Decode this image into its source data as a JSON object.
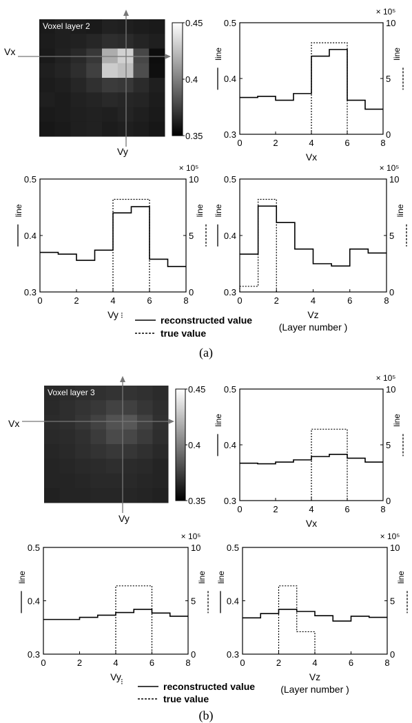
{
  "figure": {
    "caption_a": "(a)",
    "caption_b": "(b)"
  },
  "legend": {
    "solid_label": "reconstructed value",
    "dashed_label": "true value",
    "small_mark": "⁝"
  },
  "image_panels": [
    {
      "id": "a",
      "title": "Voxel layer 2",
      "xlabel": "Vx",
      "ylabel": "Vy",
      "colorbar_ticks": [
        "0.45",
        "0.4",
        "0.35"
      ],
      "colorbar_range": [
        0.35,
        0.45
      ],
      "grid": [
        [
          0.36,
          0.362,
          0.361,
          0.36,
          0.363,
          0.362,
          0.361,
          0.36
        ],
        [
          0.361,
          0.362,
          0.363,
          0.365,
          0.368,
          0.367,
          0.364,
          0.362
        ],
        [
          0.36,
          0.363,
          0.366,
          0.372,
          0.418,
          0.432,
          0.378,
          0.355
        ],
        [
          0.362,
          0.364,
          0.368,
          0.375,
          0.43,
          0.425,
          0.38,
          0.356
        ],
        [
          0.361,
          0.362,
          0.365,
          0.369,
          0.373,
          0.372,
          0.367,
          0.362
        ],
        [
          0.362,
          0.361,
          0.363,
          0.364,
          0.366,
          0.365,
          0.364,
          0.361
        ],
        [
          0.36,
          0.361,
          0.362,
          0.363,
          0.362,
          0.364,
          0.362,
          0.36
        ],
        [
          0.359,
          0.36,
          0.362,
          0.363,
          0.361,
          0.362,
          0.361,
          0.359
        ]
      ]
    },
    {
      "id": "b",
      "title": "Voxel layer 3",
      "xlabel": "Vx",
      "ylabel": "Vy",
      "colorbar_ticks": [
        "0.45",
        "0.4",
        "0.35"
      ],
      "colorbar_range": [
        0.35,
        0.45
      ],
      "grid": [
        [
          0.366,
          0.367,
          0.368,
          0.369,
          0.37,
          0.37,
          0.369,
          0.367
        ],
        [
          0.366,
          0.368,
          0.37,
          0.372,
          0.376,
          0.375,
          0.371,
          0.368
        ],
        [
          0.367,
          0.368,
          0.371,
          0.376,
          0.382,
          0.384,
          0.376,
          0.369
        ],
        [
          0.366,
          0.367,
          0.369,
          0.373,
          0.379,
          0.378,
          0.373,
          0.368
        ],
        [
          0.365,
          0.366,
          0.368,
          0.37,
          0.372,
          0.371,
          0.369,
          0.366
        ],
        [
          0.364,
          0.365,
          0.366,
          0.367,
          0.368,
          0.367,
          0.366,
          0.364
        ],
        [
          0.364,
          0.364,
          0.365,
          0.366,
          0.366,
          0.366,
          0.365,
          0.364
        ],
        [
          0.363,
          0.364,
          0.364,
          0.365,
          0.365,
          0.365,
          0.364,
          0.363
        ]
      ]
    }
  ],
  "chart_data": [
    {
      "id": "a1",
      "type": "line",
      "xlabel": "Vx",
      "xlabel2": "",
      "ylabel_left": "line",
      "ylabel_right": "line",
      "exponent": "× 10⁵",
      "xlim": [
        0,
        8
      ],
      "xticks": [
        0,
        2,
        4,
        6,
        8
      ],
      "ylim": [
        0.3,
        0.5
      ],
      "yticks": [
        0.3,
        0.4,
        0.5
      ],
      "y2lim": [
        0,
        10
      ],
      "y2ticks": [
        0,
        5,
        10
      ],
      "series": [
        {
          "style": "solid",
          "axis": "left",
          "x": [
            0,
            1,
            2,
            3,
            4,
            5,
            6,
            7,
            8
          ],
          "y": [
            0.366,
            0.368,
            0.361,
            0.373,
            0.44,
            0.452,
            0.361,
            0.345,
            0.345
          ]
        },
        {
          "style": "dotted",
          "axis": "right",
          "x": [
            4,
            4,
            6,
            6
          ],
          "y": [
            0,
            8.2,
            8.2,
            0
          ]
        }
      ]
    },
    {
      "id": "a2",
      "type": "line",
      "xlabel": "Vy",
      "xlabel2": "",
      "ylabel_left": "line",
      "ylabel_right": "line",
      "exponent": "× 10⁵",
      "xlim": [
        0,
        8
      ],
      "xticks": [
        0,
        2,
        4,
        6,
        8
      ],
      "ylim": [
        0.3,
        0.5
      ],
      "yticks": [
        0.3,
        0.4,
        0.5
      ],
      "y2lim": [
        0,
        10
      ],
      "y2ticks": [
        0,
        5,
        10
      ],
      "series": [
        {
          "style": "solid",
          "axis": "left",
          "x": [
            0,
            1,
            2,
            3,
            4,
            5,
            6,
            7,
            8
          ],
          "y": [
            0.37,
            0.367,
            0.356,
            0.374,
            0.44,
            0.451,
            0.358,
            0.345,
            0.345
          ]
        },
        {
          "style": "dotted",
          "axis": "right",
          "x": [
            4,
            4,
            6,
            6
          ],
          "y": [
            0,
            8.2,
            8.2,
            0
          ]
        }
      ]
    },
    {
      "id": "a3",
      "type": "line",
      "xlabel": "Vz",
      "xlabel2": "(Layer number )",
      "ylabel_left": "line",
      "ylabel_right": "line",
      "exponent": "× 10⁵",
      "xlim": [
        0,
        8
      ],
      "xticks": [
        0,
        2,
        4,
        6,
        8
      ],
      "ylim": [
        0.3,
        0.5
      ],
      "yticks": [
        0.3,
        0.4,
        0.5
      ],
      "y2lim": [
        0,
        10
      ],
      "y2ticks": [
        0,
        5,
        10
      ],
      "series": [
        {
          "style": "solid",
          "axis": "left",
          "x": [
            0,
            1,
            2,
            3,
            4,
            5,
            6,
            7,
            8
          ],
          "y": [
            0.367,
            0.452,
            0.423,
            0.376,
            0.35,
            0.346,
            0.376,
            0.369,
            0.369
          ]
        },
        {
          "style": "dotted",
          "axis": "right",
          "x": [
            0,
            0,
            1,
            1,
            2,
            2
          ],
          "y": [
            0,
            0.5,
            0.5,
            8.2,
            8.2,
            0
          ]
        }
      ]
    },
    {
      "id": "b1",
      "type": "line",
      "xlabel": "Vx",
      "xlabel2": "",
      "ylabel_left": "line",
      "ylabel_right": "line",
      "exponent": "× 10⁵",
      "xlim": [
        0,
        8
      ],
      "xticks": [
        0,
        2,
        4,
        6,
        8
      ],
      "ylim": [
        0.3,
        0.5
      ],
      "yticks": [
        0.3,
        0.4,
        0.5
      ],
      "y2lim": [
        0,
        10
      ],
      "y2ticks": [
        0,
        5,
        10
      ],
      "series": [
        {
          "style": "solid",
          "axis": "left",
          "x": [
            0,
            1,
            2,
            3,
            4,
            5,
            6,
            7,
            8
          ],
          "y": [
            0.367,
            0.366,
            0.369,
            0.373,
            0.379,
            0.383,
            0.376,
            0.369,
            0.369
          ]
        },
        {
          "style": "dotted",
          "axis": "right",
          "x": [
            4,
            4,
            6,
            6
          ],
          "y": [
            0,
            6.4,
            6.4,
            0
          ]
        }
      ]
    },
    {
      "id": "b2",
      "type": "line",
      "xlabel": "Vy",
      "xlabel2": "",
      "ylabel_left": "line",
      "ylabel_right": "line",
      "exponent": "× 10⁵",
      "xlim": [
        0,
        8
      ],
      "xticks": [
        0,
        2,
        4,
        6,
        8
      ],
      "ylim": [
        0.3,
        0.5
      ],
      "yticks": [
        0.3,
        0.4,
        0.5
      ],
      "y2lim": [
        0,
        10
      ],
      "y2ticks": [
        0,
        5,
        10
      ],
      "series": [
        {
          "style": "solid",
          "axis": "left",
          "x": [
            0,
            1,
            2,
            3,
            4,
            5,
            6,
            7,
            8
          ],
          "y": [
            0.365,
            0.365,
            0.369,
            0.373,
            0.378,
            0.384,
            0.377,
            0.371,
            0.371
          ]
        },
        {
          "style": "dotted",
          "axis": "right",
          "x": [
            4,
            4,
            6,
            6
          ],
          "y": [
            0,
            6.4,
            6.4,
            0
          ]
        }
      ]
    },
    {
      "id": "b3",
      "type": "line",
      "xlabel": "Vz",
      "xlabel2": "(Layer number )",
      "ylabel_left": "line",
      "ylabel_right": "line",
      "exponent": "× 10⁵",
      "xlim": [
        0,
        8
      ],
      "xticks": [
        0,
        2,
        4,
        6,
        8
      ],
      "ylim": [
        0.3,
        0.5
      ],
      "yticks": [
        0.3,
        0.4,
        0.5
      ],
      "y2lim": [
        0,
        10
      ],
      "y2ticks": [
        0,
        5,
        10
      ],
      "series": [
        {
          "style": "solid",
          "axis": "left",
          "x": [
            0,
            1,
            2,
            3,
            4,
            5,
            6,
            7,
            8
          ],
          "y": [
            0.368,
            0.376,
            0.384,
            0.38,
            0.372,
            0.362,
            0.371,
            0.369,
            0.369
          ]
        },
        {
          "style": "dotted",
          "axis": "right",
          "x": [
            2,
            2,
            3,
            3,
            4,
            4
          ],
          "y": [
            0,
            6.4,
            6.4,
            2.1,
            2.1,
            0
          ]
        }
      ]
    }
  ]
}
